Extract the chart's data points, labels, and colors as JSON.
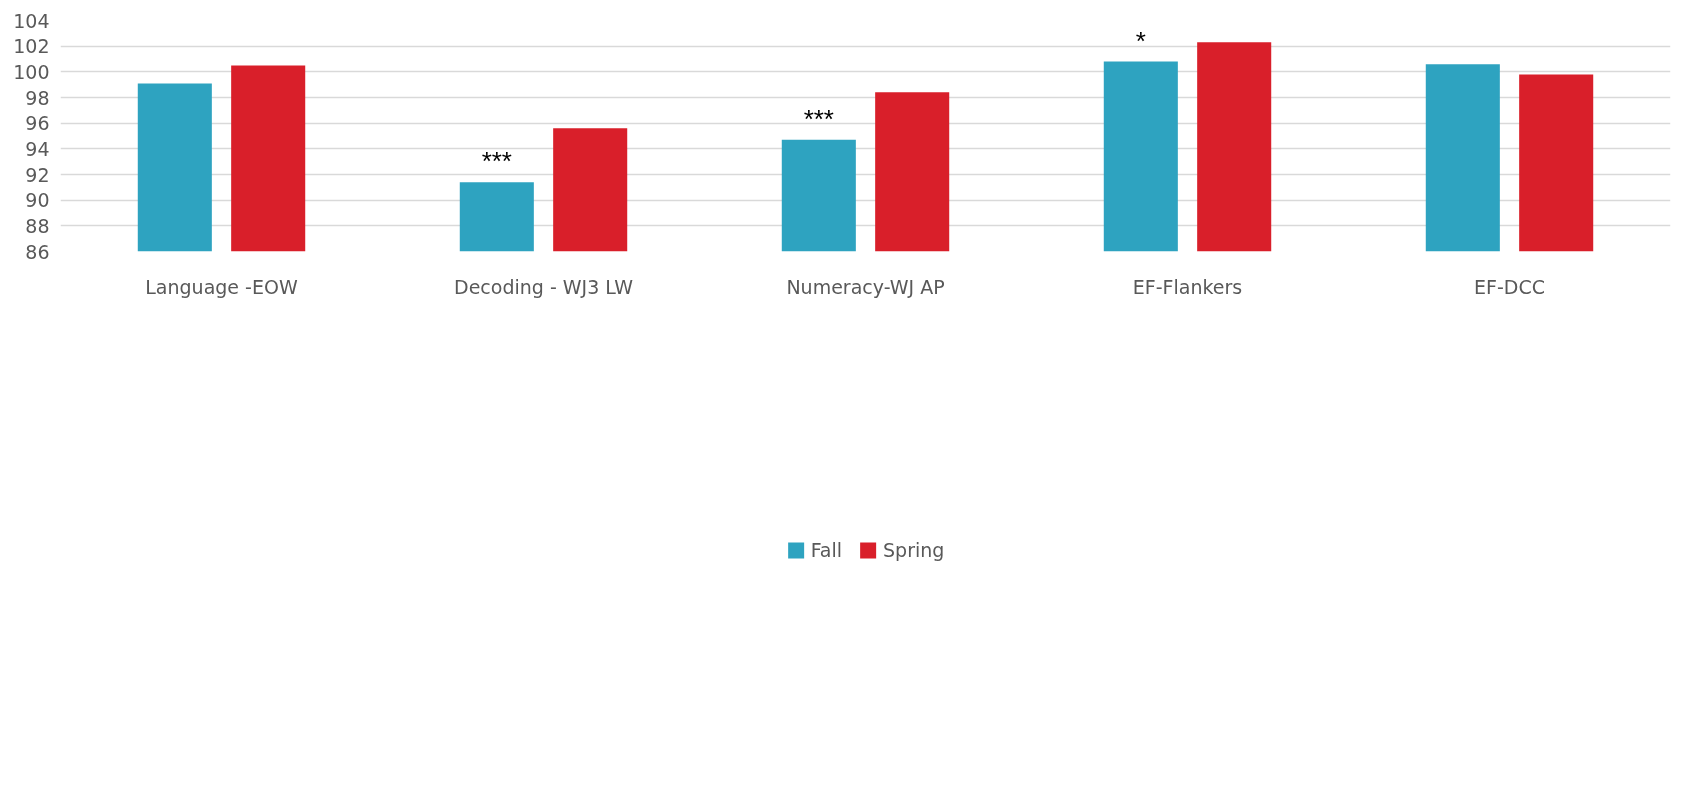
{
  "chart_data": {
    "type": "bar",
    "categories": [
      "Language -EOW",
      "Decoding - WJ3 LW",
      "Numeracy-WJ AP",
      "EF-Flankers",
      "EF-DCC"
    ],
    "series": [
      {
        "name": "Fall",
        "color": "#2ea3c0",
        "values": [
          99.1,
          91.4,
          94.7,
          100.8,
          100.6
        ],
        "value_labels": [
          null,
          "***",
          "***",
          "*",
          null
        ]
      },
      {
        "name": "Spring",
        "color": "#d91f2a",
        "values": [
          100.5,
          95.6,
          98.4,
          102.3,
          99.8
        ]
      }
    ],
    "ylim": [
      86,
      104
    ],
    "yticks": [
      86,
      88,
      90,
      92,
      94,
      96,
      98,
      100,
      102,
      104
    ],
    "grid": "y",
    "legend": "bottom"
  }
}
